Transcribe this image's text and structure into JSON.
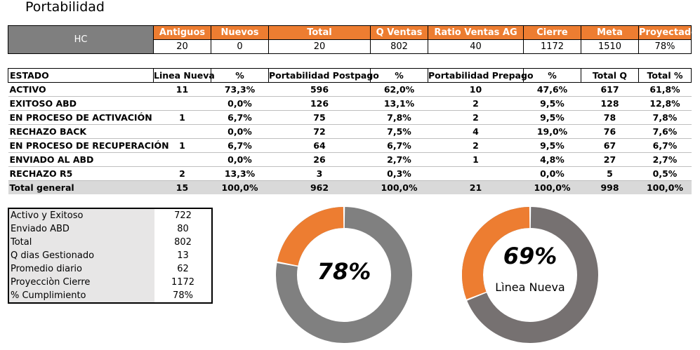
{
  "page": {
    "title": "Portabilidad"
  },
  "hc_table": {
    "label": "HC",
    "headers": [
      "Antiguos",
      "Nuevos",
      "Total",
      "Q Ventas",
      "Ratio Ventas AG",
      "Cierre",
      "Meta",
      "Proyectado"
    ],
    "values": [
      "20",
      "0",
      "20",
      "802",
      "40",
      "1172",
      "1510",
      "78%"
    ]
  },
  "estado_table": {
    "headers": [
      "ESTADO",
      "Linea Nueva",
      "%",
      "Portabilidad Postpago",
      "%",
      "Portabilidad Prepago",
      "%",
      "Total Q",
      "Total %"
    ],
    "rows": [
      [
        "ACTIVO",
        "11",
        "73,3%",
        "596",
        "62,0%",
        "10",
        "47,6%",
        "617",
        "61,8%"
      ],
      [
        "EXITOSO ABD",
        "",
        "0,0%",
        "126",
        "13,1%",
        "2",
        "9,5%",
        "128",
        "12,8%"
      ],
      [
        "EN PROCESO DE ACTIVACIÓN",
        "1",
        "6,7%",
        "75",
        "7,8%",
        "2",
        "9,5%",
        "78",
        "7,8%"
      ],
      [
        "RECHAZO BACK",
        "",
        "0,0%",
        "72",
        "7,5%",
        "4",
        "19,0%",
        "76",
        "7,6%"
      ],
      [
        "EN PROCESO DE RECUPERACIÓN",
        "1",
        "6,7%",
        "64",
        "6,7%",
        "2",
        "9,5%",
        "67",
        "6,7%"
      ],
      [
        "ENVIADO AL ABD",
        "",
        "0,0%",
        "26",
        "2,7%",
        "1",
        "4,8%",
        "27",
        "2,7%"
      ],
      [
        "RECHAZO R5",
        "2",
        "13,3%",
        "3",
        "0,3%",
        "",
        "0,0%",
        "5",
        "0,5%"
      ]
    ],
    "total": [
      "Total general",
      "15",
      "100,0%",
      "962",
      "100,0%",
      "21",
      "100,0%",
      "998",
      "100,0%"
    ]
  },
  "summary": {
    "rows": [
      {
        "label": "Activo y Exitoso",
        "value": "722"
      },
      {
        "label": "Enviado ABD",
        "value": "80"
      },
      {
        "label": "Total",
        "value": "802"
      },
      {
        "label": "Q dias Gestionado",
        "value": "13"
      },
      {
        "label": "Promedio diario",
        "value": "62"
      },
      {
        "label": "Proyecciòn Cierre",
        "value": "1172"
      },
      {
        "label": "% Cumplimiento",
        "value": "78%"
      }
    ]
  },
  "donuts": [
    {
      "value_label": "78%",
      "subtitle": "",
      "orange_fraction": 0.22,
      "gray_color": "#808080",
      "accent_color": "#ed7d31"
    },
    {
      "value_label": "69%",
      "subtitle": "Lìnea Nueva",
      "orange_fraction": 0.31,
      "gray_color": "#767171",
      "accent_color": "#ed7d31"
    }
  ]
}
